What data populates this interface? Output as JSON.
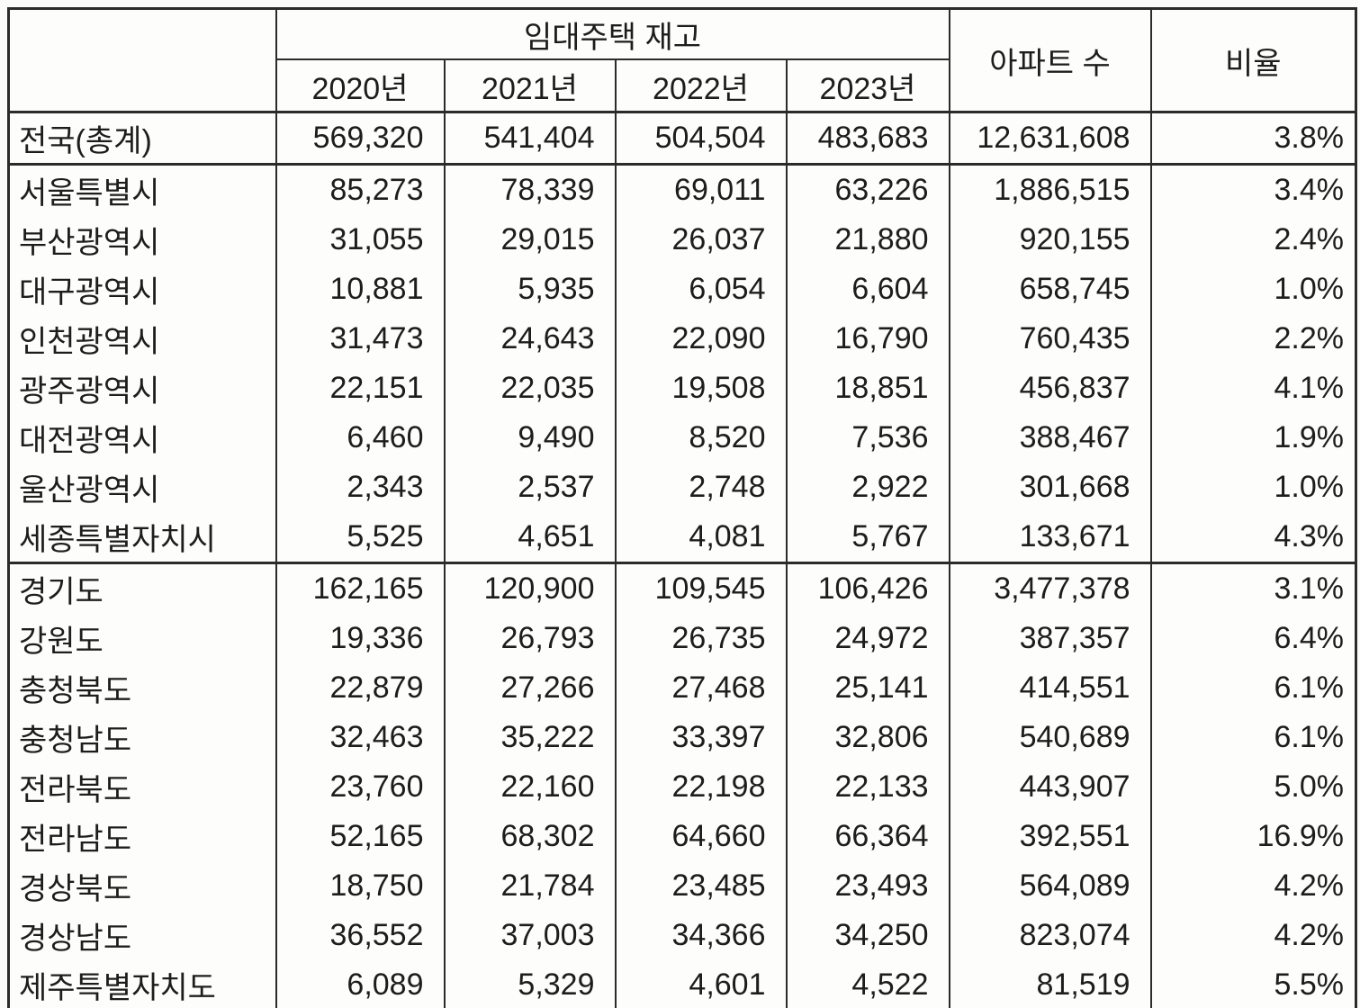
{
  "colors": {
    "border": "#2b2b2b",
    "text": "#1d1d1d",
    "cell_background": "#fdfdfb",
    "page_background": "#fbfbf9"
  },
  "chart_data": {
    "type": "table",
    "header": {
      "region_label": "",
      "group_label": "임대주택 재고",
      "years": [
        "2020년",
        "2021년",
        "2022년",
        "2023년"
      ],
      "apartments_label": "아파트 수",
      "ratio_label": "비율"
    },
    "groups": [
      {
        "rows": [
          {
            "region": "전국(총계)",
            "rental_stock": [
              "569,320",
              "541,404",
              "504,504",
              "483,683"
            ],
            "apartments": "12,631,608",
            "ratio": "3.8%"
          }
        ]
      },
      {
        "rows": [
          {
            "region": "서울특별시",
            "rental_stock": [
              "85,273",
              "78,339",
              "69,011",
              "63,226"
            ],
            "apartments": "1,886,515",
            "ratio": "3.4%"
          },
          {
            "region": "부산광역시",
            "rental_stock": [
              "31,055",
              "29,015",
              "26,037",
              "21,880"
            ],
            "apartments": "920,155",
            "ratio": "2.4%"
          },
          {
            "region": "대구광역시",
            "rental_stock": [
              "10,881",
              "5,935",
              "6,054",
              "6,604"
            ],
            "apartments": "658,745",
            "ratio": "1.0%"
          },
          {
            "region": "인천광역시",
            "rental_stock": [
              "31,473",
              "24,643",
              "22,090",
              "16,790"
            ],
            "apartments": "760,435",
            "ratio": "2.2%"
          },
          {
            "region": "광주광역시",
            "rental_stock": [
              "22,151",
              "22,035",
              "19,508",
              "18,851"
            ],
            "apartments": "456,837",
            "ratio": "4.1%"
          },
          {
            "region": "대전광역시",
            "rental_stock": [
              "6,460",
              "9,490",
              "8,520",
              "7,536"
            ],
            "apartments": "388,467",
            "ratio": "1.9%"
          },
          {
            "region": "울산광역시",
            "rental_stock": [
              "2,343",
              "2,537",
              "2,748",
              "2,922"
            ],
            "apartments": "301,668",
            "ratio": "1.0%"
          },
          {
            "region": "세종특별자치시",
            "rental_stock": [
              "5,525",
              "4,651",
              "4,081",
              "5,767"
            ],
            "apartments": "133,671",
            "ratio": "4.3%"
          }
        ]
      },
      {
        "rows": [
          {
            "region": "경기도",
            "rental_stock": [
              "162,165",
              "120,900",
              "109,545",
              "106,426"
            ],
            "apartments": "3,477,378",
            "ratio": "3.1%"
          },
          {
            "region": "강원도",
            "rental_stock": [
              "19,336",
              "26,793",
              "26,735",
              "24,972"
            ],
            "apartments": "387,357",
            "ratio": "6.4%"
          },
          {
            "region": "충청북도",
            "rental_stock": [
              "22,879",
              "27,266",
              "27,468",
              "25,141"
            ],
            "apartments": "414,551",
            "ratio": "6.1%"
          },
          {
            "region": "충청남도",
            "rental_stock": [
              "32,463",
              "35,222",
              "33,397",
              "32,806"
            ],
            "apartments": "540,689",
            "ratio": "6.1%"
          },
          {
            "region": "전라북도",
            "rental_stock": [
              "23,760",
              "22,160",
              "22,198",
              "22,133"
            ],
            "apartments": "443,907",
            "ratio": "5.0%"
          },
          {
            "region": "전라남도",
            "rental_stock": [
              "52,165",
              "68,302",
              "64,660",
              "66,364"
            ],
            "apartments": "392,551",
            "ratio": "16.9%"
          },
          {
            "region": "경상북도",
            "rental_stock": [
              "18,750",
              "21,784",
              "23,485",
              "23,493"
            ],
            "apartments": "564,089",
            "ratio": "4.2%"
          },
          {
            "region": "경상남도",
            "rental_stock": [
              "36,552",
              "37,003",
              "34,366",
              "34,250"
            ],
            "apartments": "823,074",
            "ratio": "4.2%"
          },
          {
            "region": "제주특별자치도",
            "rental_stock": [
              "6,089",
              "5,329",
              "4,601",
              "4,522"
            ],
            "apartments": "81,519",
            "ratio": "5.5%"
          }
        ]
      }
    ]
  }
}
